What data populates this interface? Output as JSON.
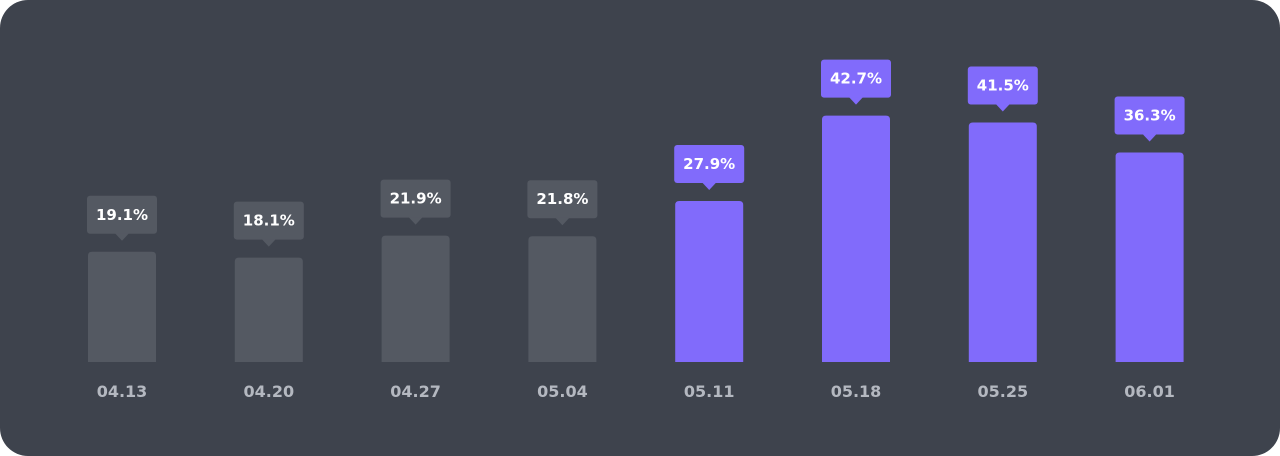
{
  "chart_data": {
    "type": "bar",
    "categories": [
      "04.13",
      "04.20",
      "04.27",
      "05.04",
      "05.11",
      "05.18",
      "05.25",
      "06.01"
    ],
    "values": [
      19.1,
      18.1,
      21.9,
      21.8,
      27.9,
      42.7,
      41.5,
      36.3
    ],
    "value_labels": [
      "19.1%",
      "18.1%",
      "21.9%",
      "21.8%",
      "27.9%",
      "42.7%",
      "41.5%",
      "36.3%"
    ],
    "highlighted": [
      false,
      false,
      false,
      false,
      true,
      true,
      true,
      true
    ],
    "title": "",
    "xlabel": "",
    "ylabel": "",
    "unit": "%",
    "ylim": [
      0,
      45
    ],
    "grid": false,
    "legend": "none",
    "colors": {
      "background": "#3e434d",
      "bar_default": "#545962",
      "bar_highlight": "#816bfb",
      "tooltip_default": "#545962",
      "tooltip_highlight": "#816bfb",
      "value_text": "#ffffff",
      "category_text": "#b4b8c0"
    }
  }
}
